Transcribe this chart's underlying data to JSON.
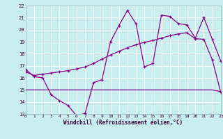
{
  "xlabel": "Windchill (Refroidissement éolien,°C)",
  "background_color": "#c8eef0",
  "grid_color": "#ffffff",
  "line_color": "#880088",
  "xmin": 0,
  "xmax": 23,
  "ymin": 13,
  "ymax": 22,
  "x_ticks": [
    0,
    1,
    2,
    3,
    4,
    5,
    6,
    7,
    8,
    9,
    10,
    11,
    12,
    13,
    14,
    15,
    16,
    17,
    18,
    19,
    20,
    21,
    22,
    23
  ],
  "y_ticks": [
    13,
    14,
    15,
    16,
    17,
    18,
    19,
    20,
    21,
    22
  ],
  "line1_x": [
    0,
    1,
    2,
    3,
    4,
    5,
    6,
    7,
    8,
    9,
    10,
    11,
    12,
    13,
    14,
    15,
    16,
    17,
    18,
    19,
    20,
    21,
    22,
    23
  ],
  "line1_y": [
    16.7,
    16.1,
    16.0,
    14.6,
    14.1,
    13.7,
    12.85,
    13.05,
    15.6,
    15.85,
    19.0,
    20.35,
    21.6,
    20.5,
    16.9,
    17.2,
    21.2,
    21.1,
    20.5,
    20.4,
    19.3,
    21.0,
    19.2,
    17.4
  ],
  "line2_x": [
    0,
    1,
    2,
    3,
    4,
    5,
    6,
    7,
    8,
    9,
    10,
    11,
    12,
    13,
    14,
    15,
    16,
    17,
    18,
    19,
    20,
    21,
    22,
    23
  ],
  "line2_y": [
    16.5,
    16.2,
    16.3,
    16.4,
    16.5,
    16.6,
    16.75,
    16.9,
    17.2,
    17.55,
    17.9,
    18.2,
    18.5,
    18.75,
    18.95,
    19.1,
    19.3,
    19.5,
    19.65,
    19.75,
    19.25,
    19.2,
    17.5,
    14.8
  ],
  "line3_x": [
    0,
    1,
    2,
    3,
    4,
    5,
    6,
    7,
    8,
    9,
    10,
    11,
    12,
    13,
    14,
    15,
    16,
    17,
    18,
    19,
    20,
    21,
    22,
    23
  ],
  "line3_y": [
    15.0,
    15.0,
    15.0,
    15.0,
    15.0,
    15.0,
    15.0,
    15.0,
    15.0,
    15.0,
    15.0,
    15.0,
    15.0,
    15.0,
    15.0,
    15.0,
    15.0,
    15.0,
    15.0,
    15.0,
    15.0,
    15.0,
    15.0,
    14.85
  ]
}
